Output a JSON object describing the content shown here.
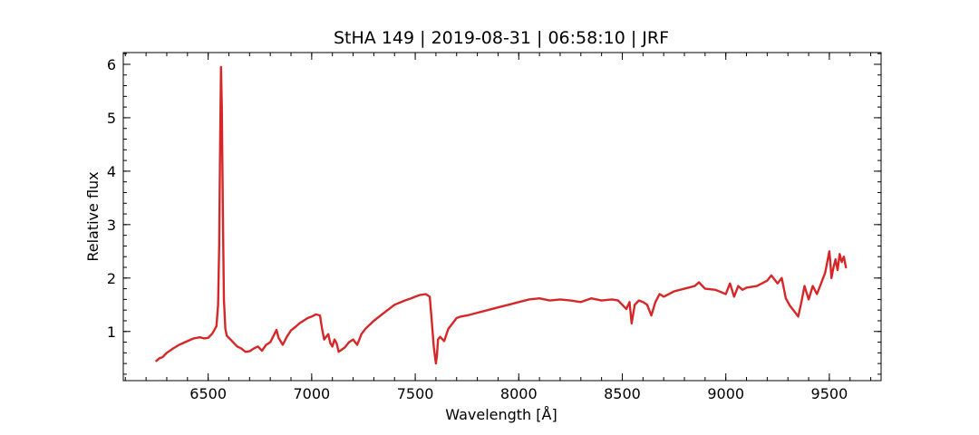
{
  "chart_data": {
    "type": "line",
    "title": "StHA 149 | 2019-08-31 | 06:58:10 | JRF",
    "xlabel": "Wavelength [Å]",
    "ylabel": "Relative flux",
    "xlim": [
      6090,
      9750
    ],
    "ylim": [
      0.08,
      6.22
    ],
    "grid": false,
    "legend": "none",
    "x_ticks": [
      6500,
      7000,
      7500,
      8000,
      8500,
      9000,
      9500
    ],
    "y_ticks": [
      1,
      2,
      3,
      4,
      5,
      6
    ],
    "x_minor_step": 100,
    "y_minor_step": 0.2,
    "colors": {
      "line": "#d62728",
      "axes": "#000000"
    },
    "series": [
      {
        "x": [
          6250,
          6265,
          6280,
          6300,
          6330,
          6360,
          6400,
          6430,
          6460,
          6480,
          6500,
          6510,
          6520,
          6540,
          6548,
          6553,
          6558,
          6562,
          6566,
          6571,
          6576,
          6583,
          6590,
          6600,
          6620,
          6640,
          6660,
          6680,
          6700,
          6720,
          6740,
          6760,
          6780,
          6800,
          6820,
          6830,
          6840,
          6860,
          6880,
          6900,
          6920,
          6940,
          6960,
          6980,
          7000,
          7020,
          7040,
          7050,
          7060,
          7080,
          7090,
          7100,
          7110,
          7120,
          7130,
          7160,
          7180,
          7200,
          7220,
          7240,
          7260,
          7300,
          7350,
          7400,
          7450,
          7480,
          7500,
          7520,
          7550,
          7570,
          7580,
          7590,
          7600,
          7605,
          7610,
          7620,
          7640,
          7660,
          7680,
          7700,
          7720,
          7750,
          7800,
          7850,
          7900,
          7950,
          8000,
          8050,
          8100,
          8150,
          8200,
          8250,
          8300,
          8350,
          8400,
          8450,
          8480,
          8500,
          8520,
          8535,
          8545,
          8560,
          8580,
          8600,
          8620,
          8640,
          8660,
          8680,
          8700,
          8750,
          8800,
          8850,
          8870,
          8900,
          8950,
          9000,
          9020,
          9040,
          9060,
          9080,
          9100,
          9150,
          9200,
          9220,
          9250,
          9270,
          9290,
          9310,
          9330,
          9350,
          9365,
          9380,
          9400,
          9420,
          9440,
          9460,
          9480,
          9500,
          9505,
          9510,
          9520,
          9530,
          9540,
          9550,
          9560,
          9570,
          9580
        ],
        "y": [
          0.45,
          0.5,
          0.52,
          0.6,
          0.68,
          0.75,
          0.82,
          0.87,
          0.89,
          0.87,
          0.88,
          0.92,
          0.96,
          1.1,
          1.5,
          2.6,
          4.6,
          5.95,
          5.2,
          3.2,
          1.6,
          1.05,
          0.92,
          0.88,
          0.8,
          0.72,
          0.68,
          0.62,
          0.63,
          0.68,
          0.72,
          0.64,
          0.75,
          0.8,
          0.95,
          1.03,
          0.88,
          0.75,
          0.9,
          1.02,
          1.08,
          1.15,
          1.2,
          1.25,
          1.28,
          1.32,
          1.3,
          1.05,
          0.85,
          0.95,
          0.78,
          0.72,
          0.85,
          0.78,
          0.62,
          0.7,
          0.8,
          0.85,
          0.75,
          0.95,
          1.05,
          1.2,
          1.35,
          1.5,
          1.58,
          1.62,
          1.65,
          1.68,
          1.7,
          1.65,
          1.2,
          0.7,
          0.4,
          0.55,
          0.85,
          0.9,
          0.82,
          1.05,
          1.15,
          1.25,
          1.28,
          1.3,
          1.35,
          1.4,
          1.45,
          1.5,
          1.55,
          1.6,
          1.62,
          1.58,
          1.6,
          1.58,
          1.55,
          1.62,
          1.58,
          1.6,
          1.58,
          1.5,
          1.42,
          1.55,
          1.15,
          1.5,
          1.58,
          1.55,
          1.5,
          1.3,
          1.55,
          1.7,
          1.65,
          1.75,
          1.8,
          1.85,
          1.92,
          1.8,
          1.78,
          1.7,
          1.9,
          1.65,
          1.85,
          1.78,
          1.82,
          1.85,
          1.95,
          2.05,
          1.9,
          2.0,
          1.62,
          1.48,
          1.38,
          1.28,
          1.55,
          1.85,
          1.6,
          1.85,
          1.7,
          1.9,
          2.1,
          2.5,
          2.3,
          2.0,
          2.2,
          2.35,
          2.15,
          2.45,
          2.3,
          2.4,
          2.2
        ]
      }
    ]
  }
}
